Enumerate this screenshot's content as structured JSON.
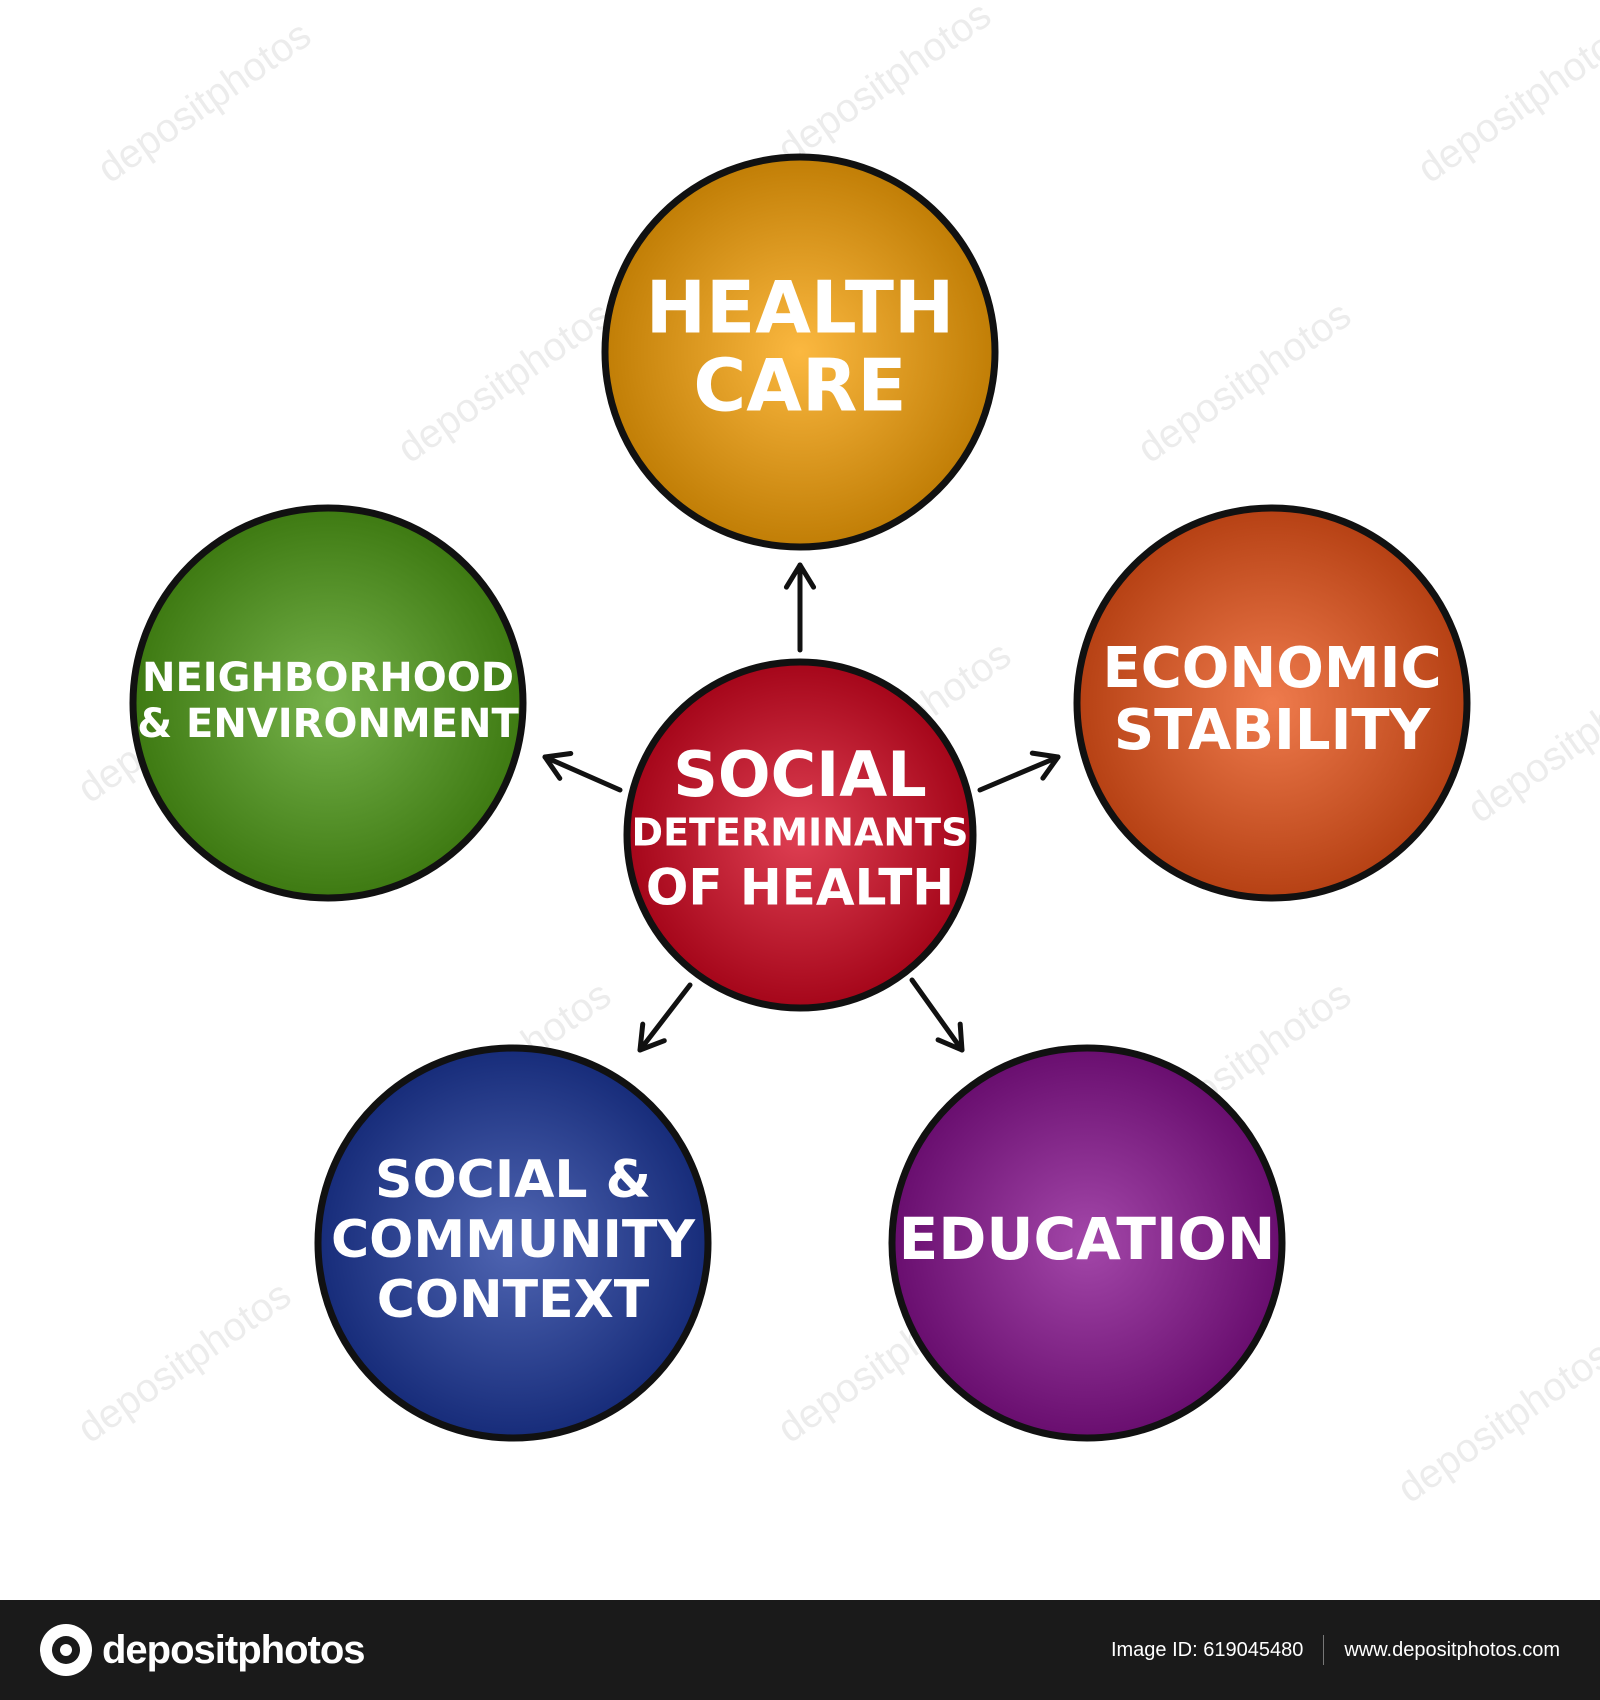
{
  "center": {
    "lines": [
      "SOCIAL",
      "DETERMINANTS",
      "OF HEALTH"
    ],
    "color": "#d4001a"
  },
  "nodes": [
    {
      "id": "health-care",
      "lines": [
        "HEALTH",
        "CARE"
      ],
      "color": "#f9a000"
    },
    {
      "id": "economic-stability",
      "lines": [
        "ECONOMIC",
        "STABILITY"
      ],
      "color": "#ea4f12"
    },
    {
      "id": "education",
      "lines": [
        "EDUCATION"
      ],
      "color": "#840a8c"
    },
    {
      "id": "social-community-context",
      "lines": [
        "SOCIAL &",
        "COMMUNITY",
        "CONTEXT"
      ],
      "color": "#16339a"
    },
    {
      "id": "neighborhood-environment",
      "lines": [
        "NEIGHBORHOOD",
        "& ENVIRONMENT"
      ],
      "color": "#4a9a10"
    }
  ],
  "watermark": "depositphotos",
  "footer": {
    "logo_text": "depositphotos",
    "image_id": "Image ID: 619045480",
    "site": "www.depositphotos.com"
  }
}
